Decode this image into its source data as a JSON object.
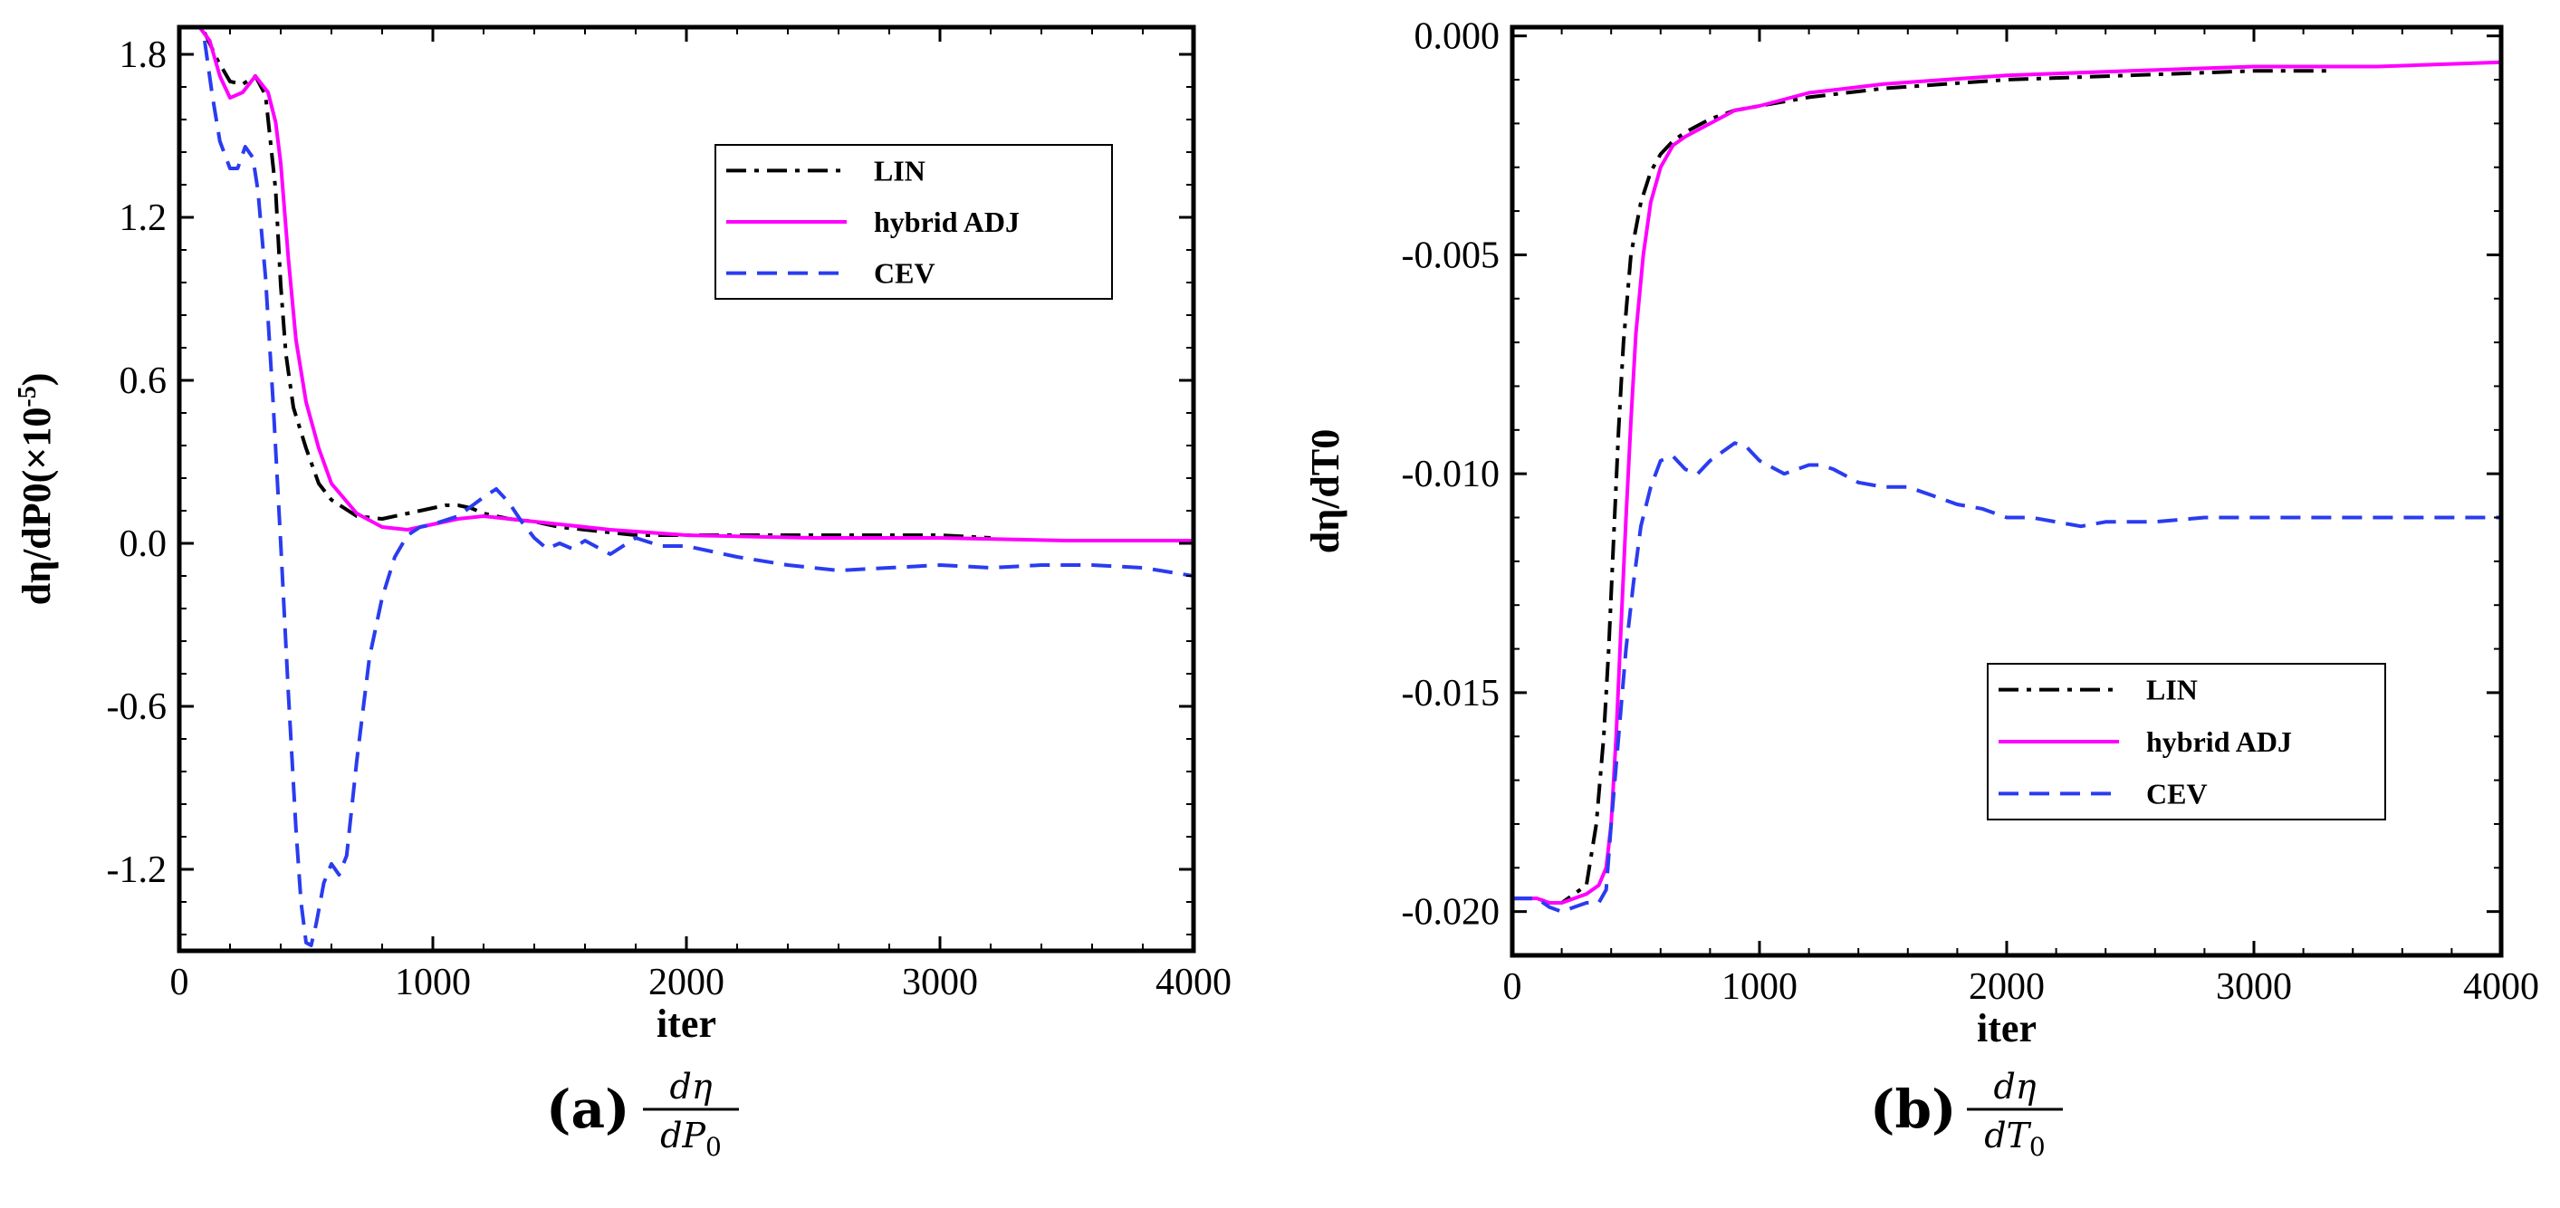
{
  "chart_data": [
    {
      "type": "line",
      "panel_label": "(a)",
      "caption": {
        "num": "dη",
        "den_main": "dP",
        "den_sub": "0"
      },
      "xlabel": "iter",
      "ylabel": "dη/dP0(×10",
      "ylabel_sup": "-5",
      "ylabel_close": ")",
      "xlim": [
        0,
        4000
      ],
      "ylim": [
        -1.5,
        1.9
      ],
      "xticks": [
        0,
        1000,
        2000,
        3000,
        4000
      ],
      "xtick_labels": [
        "0",
        "1000",
        "2000",
        "3000",
        "4000"
      ],
      "yticks": [
        -1.2,
        -0.6,
        0.0,
        0.6,
        1.2,
        1.8
      ],
      "ytick_labels": [
        "-1.2",
        "-0.6",
        "0.0",
        "0.6",
        "1.2",
        "1.8"
      ],
      "legend_position": "upper-right",
      "series": [
        {
          "name": "LIN",
          "color": "#000000",
          "style": "dashdot",
          "x": [
            100,
            150,
            200,
            250,
            300,
            340,
            380,
            400,
            420,
            450,
            500,
            550,
            600,
            700,
            800,
            900,
            1000,
            1050,
            1100,
            1150,
            1200,
            1300,
            1400,
            1500,
            1600,
            1700,
            1800,
            2000,
            2500,
            3000,
            3200
          ],
          "y": [
            1.88,
            1.78,
            1.7,
            1.69,
            1.72,
            1.65,
            1.3,
            0.95,
            0.7,
            0.5,
            0.35,
            0.22,
            0.16,
            0.1,
            0.09,
            0.11,
            0.13,
            0.14,
            0.14,
            0.13,
            0.11,
            0.09,
            0.08,
            0.06,
            0.05,
            0.04,
            0.03,
            0.03,
            0.03,
            0.03,
            0.02
          ]
        },
        {
          "name": "hybrid ADJ",
          "color": "#ff00ff",
          "style": "solid",
          "x": [
            80,
            120,
            160,
            200,
            250,
            300,
            350,
            380,
            400,
            430,
            460,
            500,
            550,
            600,
            700,
            800,
            900,
            1000,
            1100,
            1200,
            1300,
            1500,
            1700,
            2000,
            2500,
            3000,
            3500,
            4000
          ],
          "y": [
            1.9,
            1.85,
            1.72,
            1.64,
            1.66,
            1.72,
            1.66,
            1.55,
            1.4,
            1.05,
            0.75,
            0.52,
            0.35,
            0.22,
            0.11,
            0.06,
            0.05,
            0.07,
            0.09,
            0.1,
            0.09,
            0.07,
            0.05,
            0.03,
            0.02,
            0.02,
            0.01,
            0.01
          ]
        },
        {
          "name": "CEV",
          "color": "#2a3cf0",
          "style": "dashed",
          "x": [
            100,
            130,
            160,
            200,
            230,
            260,
            290,
            310,
            340,
            370,
            400,
            430,
            460,
            480,
            500,
            520,
            540,
            570,
            600,
            630,
            660,
            700,
            750,
            800,
            850,
            900,
            950,
            1000,
            1100,
            1200,
            1250,
            1300,
            1350,
            1400,
            1450,
            1500,
            1550,
            1600,
            1700,
            1800,
            1900,
            2000,
            2100,
            2200,
            2400,
            2600,
            2800,
            3000,
            3200,
            3400,
            3600,
            3800,
            4000
          ],
          "y": [
            1.85,
            1.65,
            1.48,
            1.38,
            1.38,
            1.46,
            1.42,
            1.3,
            0.98,
            0.52,
            0.0,
            -0.55,
            -1.05,
            -1.32,
            -1.47,
            -1.48,
            -1.4,
            -1.25,
            -1.18,
            -1.22,
            -1.15,
            -0.8,
            -0.42,
            -0.2,
            -0.05,
            0.03,
            0.06,
            0.07,
            0.1,
            0.17,
            0.2,
            0.15,
            0.08,
            0.02,
            -0.02,
            0.0,
            -0.02,
            0.01,
            -0.04,
            0.02,
            -0.01,
            -0.01,
            -0.03,
            -0.05,
            -0.08,
            -0.1,
            -0.09,
            -0.08,
            -0.09,
            -0.08,
            -0.08,
            -0.09,
            -0.12
          ]
        }
      ]
    },
    {
      "type": "line",
      "panel_label": "(b)",
      "caption": {
        "num": "dη",
        "den_main": "dT",
        "den_sub": "0"
      },
      "xlabel": "iter",
      "ylabel": "dη/dT0",
      "xlim": [
        0,
        4000
      ],
      "ylim": [
        -0.021,
        0.0002
      ],
      "xticks": [
        0,
        1000,
        2000,
        3000,
        4000
      ],
      "xtick_labels": [
        "0",
        "1000",
        "2000",
        "3000",
        "4000"
      ],
      "yticks": [
        -0.02,
        -0.015,
        -0.01,
        -0.005,
        0.0
      ],
      "ytick_labels": [
        "-0.020",
        "-0.015",
        "-0.010",
        "-0.005",
        "0.000"
      ],
      "legend_position": "lower-right",
      "series": [
        {
          "name": "LIN",
          "color": "#000000",
          "style": "dashdot",
          "x": [
            0,
            100,
            150,
            200,
            250,
            300,
            340,
            370,
            390,
            410,
            430,
            450,
            480,
            520,
            560,
            600,
            650,
            700,
            800,
            900,
            1000,
            1200,
            1500,
            2000,
            2500,
            3000,
            3300
          ],
          "y": [
            -0.0197,
            -0.0197,
            -0.0198,
            -0.0198,
            -0.0196,
            -0.0194,
            -0.018,
            -0.016,
            -0.014,
            -0.0115,
            -0.009,
            -0.007,
            -0.005,
            -0.0038,
            -0.0031,
            -0.0027,
            -0.0024,
            -0.0022,
            -0.0019,
            -0.0017,
            -0.0016,
            -0.0014,
            -0.0012,
            -0.001,
            -0.0009,
            -0.0008,
            -0.0008
          ]
        },
        {
          "name": "hybrid ADJ",
          "color": "#ff00ff",
          "style": "solid",
          "x": [
            0,
            100,
            150,
            200,
            250,
            300,
            350,
            380,
            400,
            420,
            440,
            460,
            480,
            500,
            530,
            560,
            600,
            650,
            700,
            800,
            900,
            1000,
            1200,
            1500,
            2000,
            2500,
            3000,
            3500,
            4000
          ],
          "y": [
            -0.0197,
            -0.0197,
            -0.0198,
            -0.0198,
            -0.0197,
            -0.0196,
            -0.0194,
            -0.019,
            -0.018,
            -0.016,
            -0.0135,
            -0.011,
            -0.0088,
            -0.0068,
            -0.005,
            -0.0038,
            -0.003,
            -0.0025,
            -0.0023,
            -0.002,
            -0.0017,
            -0.0016,
            -0.0013,
            -0.0011,
            -0.0009,
            -0.0008,
            -0.0007,
            -0.0007,
            -0.0006
          ]
        },
        {
          "name": "CEV",
          "color": "#2a3cf0",
          "style": "dashed",
          "x": [
            0,
            100,
            150,
            200,
            250,
            300,
            350,
            380,
            400,
            430,
            460,
            490,
            520,
            560,
            600,
            650,
            700,
            750,
            800,
            850,
            900,
            950,
            1000,
            1100,
            1200,
            1250,
            1300,
            1400,
            1500,
            1600,
            1700,
            1800,
            1900,
            2000,
            2100,
            2200,
            2300,
            2400,
            2600,
            2800,
            3000,
            3500,
            4000
          ],
          "y": [
            -0.0197,
            -0.0197,
            -0.0199,
            -0.02,
            -0.0199,
            -0.0198,
            -0.0198,
            -0.0195,
            -0.018,
            -0.016,
            -0.014,
            -0.0125,
            -0.0112,
            -0.0103,
            -0.0097,
            -0.0096,
            -0.0099,
            -0.01,
            -0.0097,
            -0.0095,
            -0.0093,
            -0.0094,
            -0.0097,
            -0.01,
            -0.0098,
            -0.0098,
            -0.0099,
            -0.0102,
            -0.0103,
            -0.0103,
            -0.0105,
            -0.0107,
            -0.0108,
            -0.011,
            -0.011,
            -0.0111,
            -0.0112,
            -0.0111,
            -0.0111,
            -0.011,
            -0.011,
            -0.011,
            -0.011
          ]
        }
      ]
    }
  ]
}
